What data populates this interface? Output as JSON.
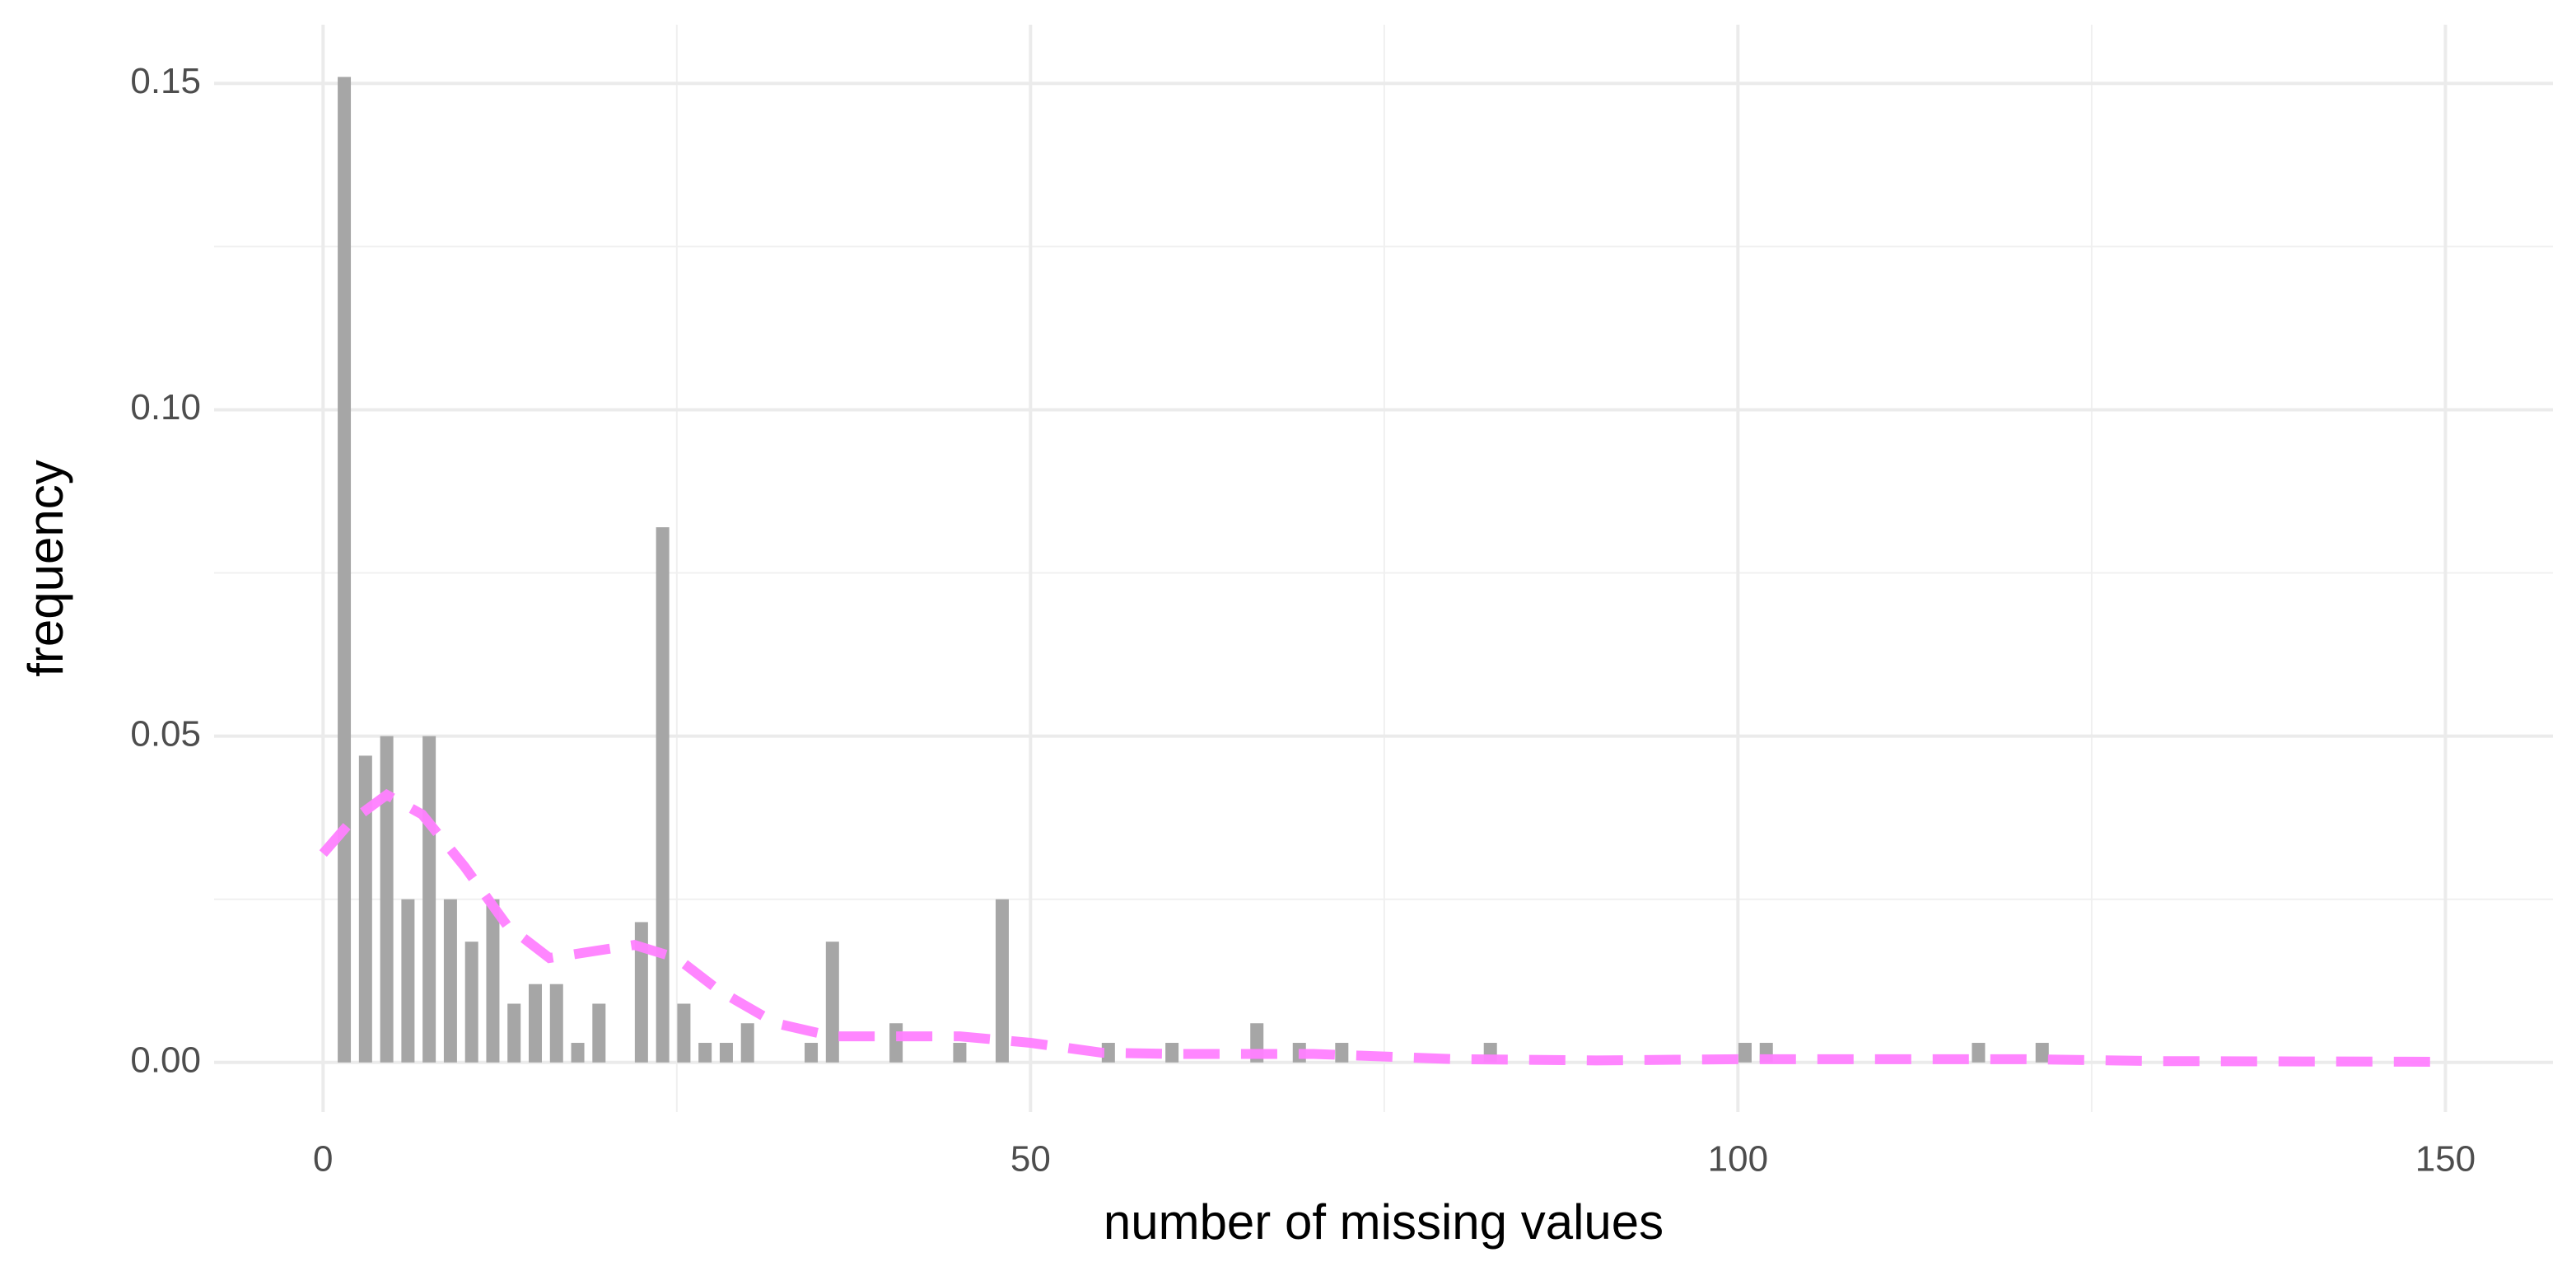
{
  "chart_data": {
    "type": "bar",
    "x_label": "number of missing values",
    "y_label": "frequency",
    "xlim": [
      -7.7,
      157.6
    ],
    "ylim": [
      -0.0076,
      0.159
    ],
    "xticks": [
      0,
      50,
      100,
      150
    ],
    "yticks": [
      {
        "value": 0,
        "label": "0.00"
      },
      {
        "value": 0.05,
        "label": "0.05"
      },
      {
        "value": 0.1,
        "label": "0.10"
      },
      {
        "value": 0.15,
        "label": "0.15"
      }
    ],
    "xminor": [
      25,
      75,
      125
    ],
    "yminor": [
      0.025,
      0.075,
      0.125
    ],
    "grid": true,
    "series": [
      {
        "type": "bar",
        "color": "#a6a6a6",
        "x": [
          1.5,
          3,
          4.5,
          6,
          7.5,
          9,
          10.5,
          12,
          13.5,
          15,
          16.5,
          18,
          19.5,
          22.5,
          24,
          25.5,
          27,
          28.5,
          30,
          34.5,
          36,
          40.5,
          45,
          48,
          55.5,
          60,
          66,
          69,
          72,
          82.5,
          100.5,
          102,
          117,
          121.5
        ],
        "values": [
          0.151,
          0.047,
          0.05,
          0.025,
          0.05,
          0.025,
          0.0185,
          0.025,
          0.009,
          0.012,
          0.012,
          0.003,
          0.009,
          0.0215,
          0.082,
          0.009,
          0.003,
          0.003,
          0.006,
          0.003,
          0.0185,
          0.006,
          0.003,
          0.025,
          0.003,
          0.003,
          0.006,
          0.003,
          0.003,
          0.003,
          0.003,
          0.003,
          0.003,
          0.003
        ]
      },
      {
        "type": "line",
        "color": "#ff80ff",
        "dash": true,
        "x": [
          0,
          2,
          4.5,
          7,
          10,
          13,
          16,
          19,
          22,
          25,
          28,
          32,
          36,
          40,
          45,
          50,
          55,
          60,
          70,
          80,
          90,
          100,
          110,
          120,
          130,
          150
        ],
        "values": [
          0.032,
          0.037,
          0.041,
          0.038,
          0.03,
          0.021,
          0.016,
          0.017,
          0.018,
          0.016,
          0.011,
          0.006,
          0.004,
          0.004,
          0.004,
          0.003,
          0.0015,
          0.0013,
          0.0013,
          0.0005,
          0.0003,
          0.0005,
          0.0005,
          0.0005,
          0.0002,
          0.0001
        ]
      }
    ]
  }
}
